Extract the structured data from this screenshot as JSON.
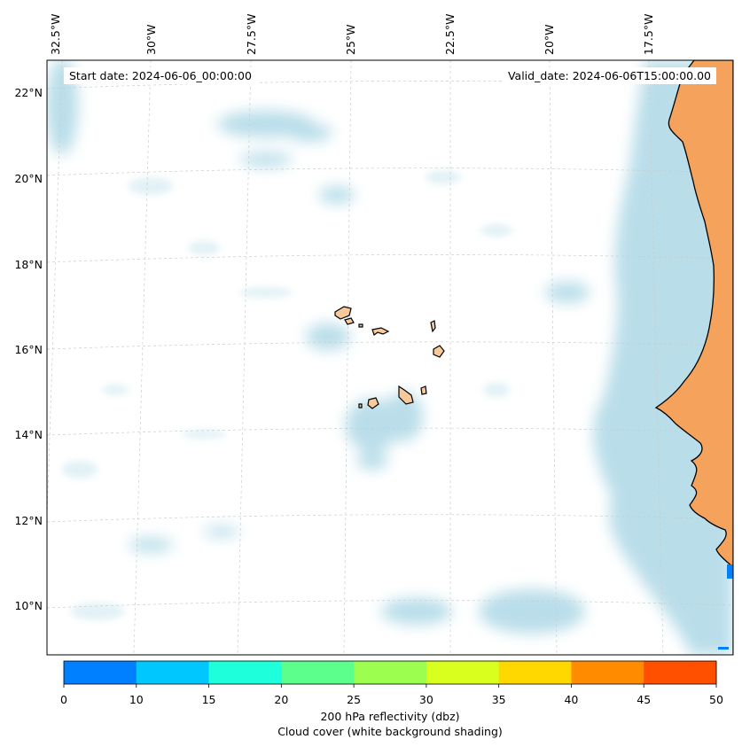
{
  "map": {
    "start_date": "Start date: 2024-06-06_00:00:00",
    "valid_date": "Valid_date: 2024-06-06T15:00:00.00",
    "lon_labels": [
      "32.5°W",
      "30°W",
      "27.5°W",
      "25°W",
      "22.5°W",
      "20°W",
      "17.5°W"
    ],
    "lat_labels": [
      "22°N",
      "20°N",
      "18°N",
      "16°N",
      "14°N",
      "12°N",
      "10°N"
    ],
    "land_color": "#f5a35c",
    "island_color": "#f8c99a",
    "cloud_color": "#add8e6"
  },
  "colorbar": {
    "ticks": [
      "0",
      "10",
      "15",
      "20",
      "25",
      "30",
      "35",
      "40",
      "45",
      "50"
    ],
    "colors": [
      "#0080ff",
      "#00c8ff",
      "#1effdc",
      "#5cff8c",
      "#9cff50",
      "#d8ff1e",
      "#ffd800",
      "#ff8c00",
      "#ff5000"
    ],
    "label_line1": "200 hPa reflectivity (dbz)",
    "label_line2": "Cloud cover (white background shading)"
  }
}
